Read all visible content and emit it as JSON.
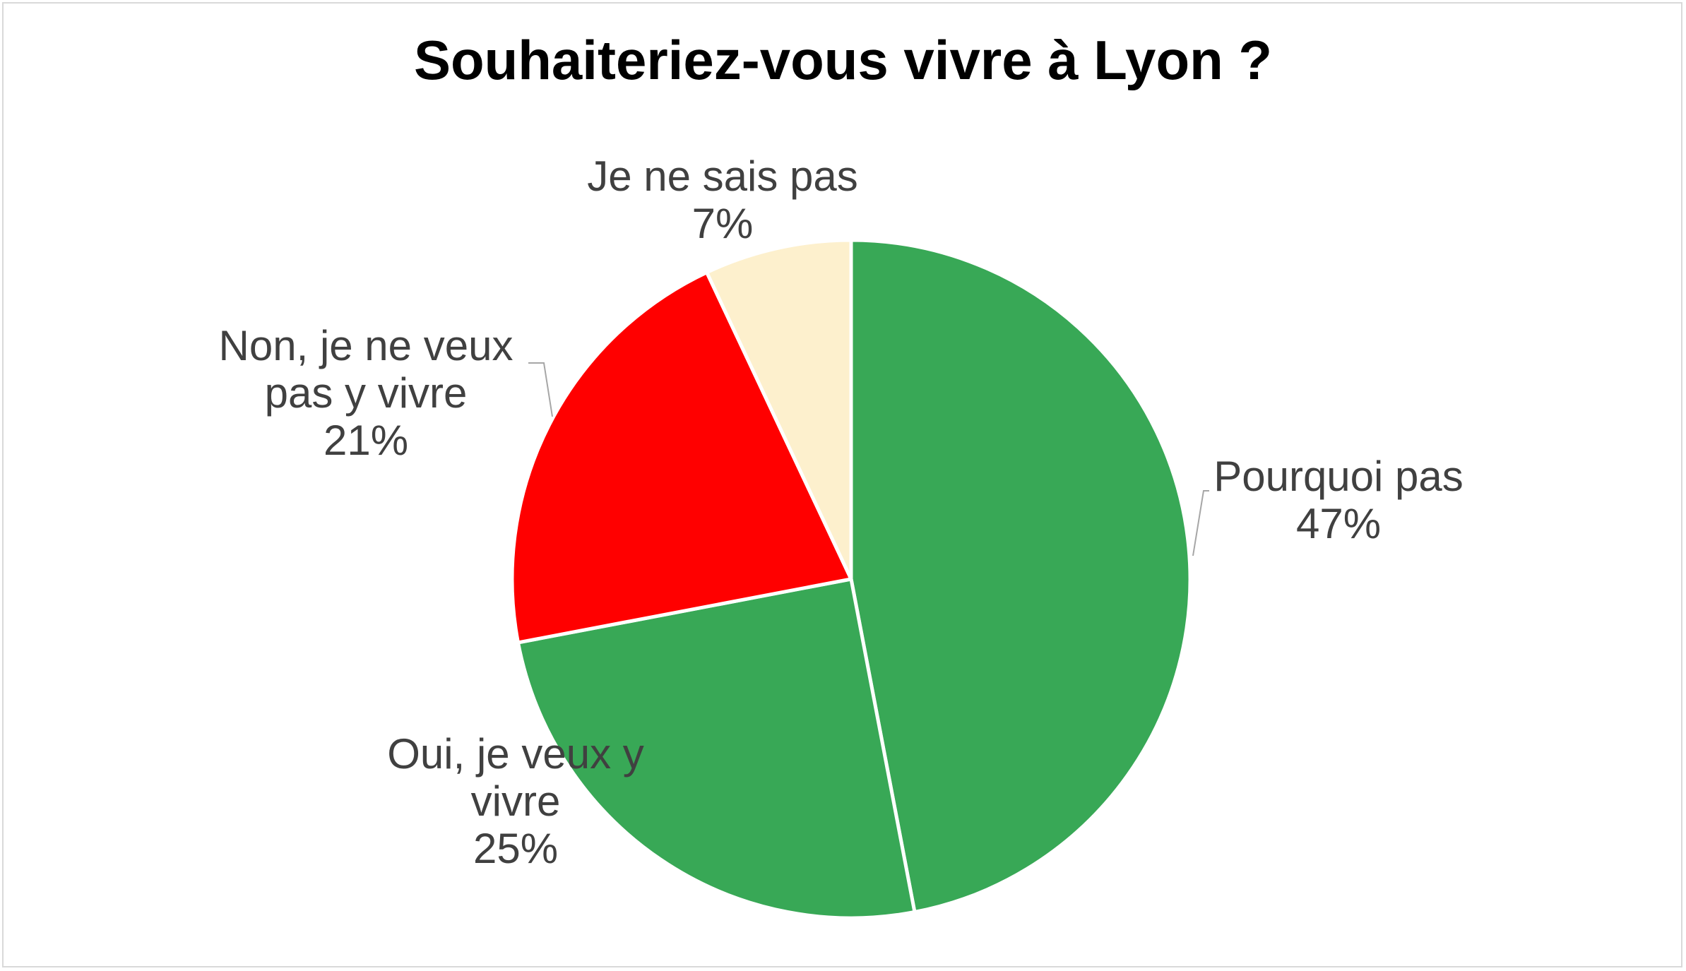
{
  "chart_data": {
    "type": "pie",
    "title": "Souhaiteriez-vous vivre à Lyon ?",
    "slices": [
      {
        "name": "Pourquoi pas",
        "value": 47,
        "percent_label": "47%",
        "label_lines": [
          "Pourquoi pas"
        ],
        "color": "#38a856"
      },
      {
        "name": "Oui, je veux y vivre",
        "value": 25,
        "percent_label": "25%",
        "label_lines": [
          "Oui, je veux y",
          "vivre"
        ],
        "color": "#38a856"
      },
      {
        "name": "Non, je ne veux pas y vivre",
        "value": 21,
        "percent_label": "21%",
        "label_lines": [
          "Non, je ne veux",
          "pas y vivre"
        ],
        "color": "#ff0000"
      },
      {
        "name": "Je ne sais pas",
        "value": 7,
        "percent_label": "7%",
        "label_lines": [
          "Je ne sais pas"
        ],
        "color": "#fdf0cd"
      }
    ],
    "start_angle": "12 o'clock",
    "direction": "clockwise",
    "legend": "none",
    "data_labels": "outside, category name and percentage",
    "colors": {
      "label_text": "#404040",
      "leader_line": "#a6a6a6",
      "slice_border": "#ffffff",
      "frame_border": "#d9d9d9"
    }
  }
}
